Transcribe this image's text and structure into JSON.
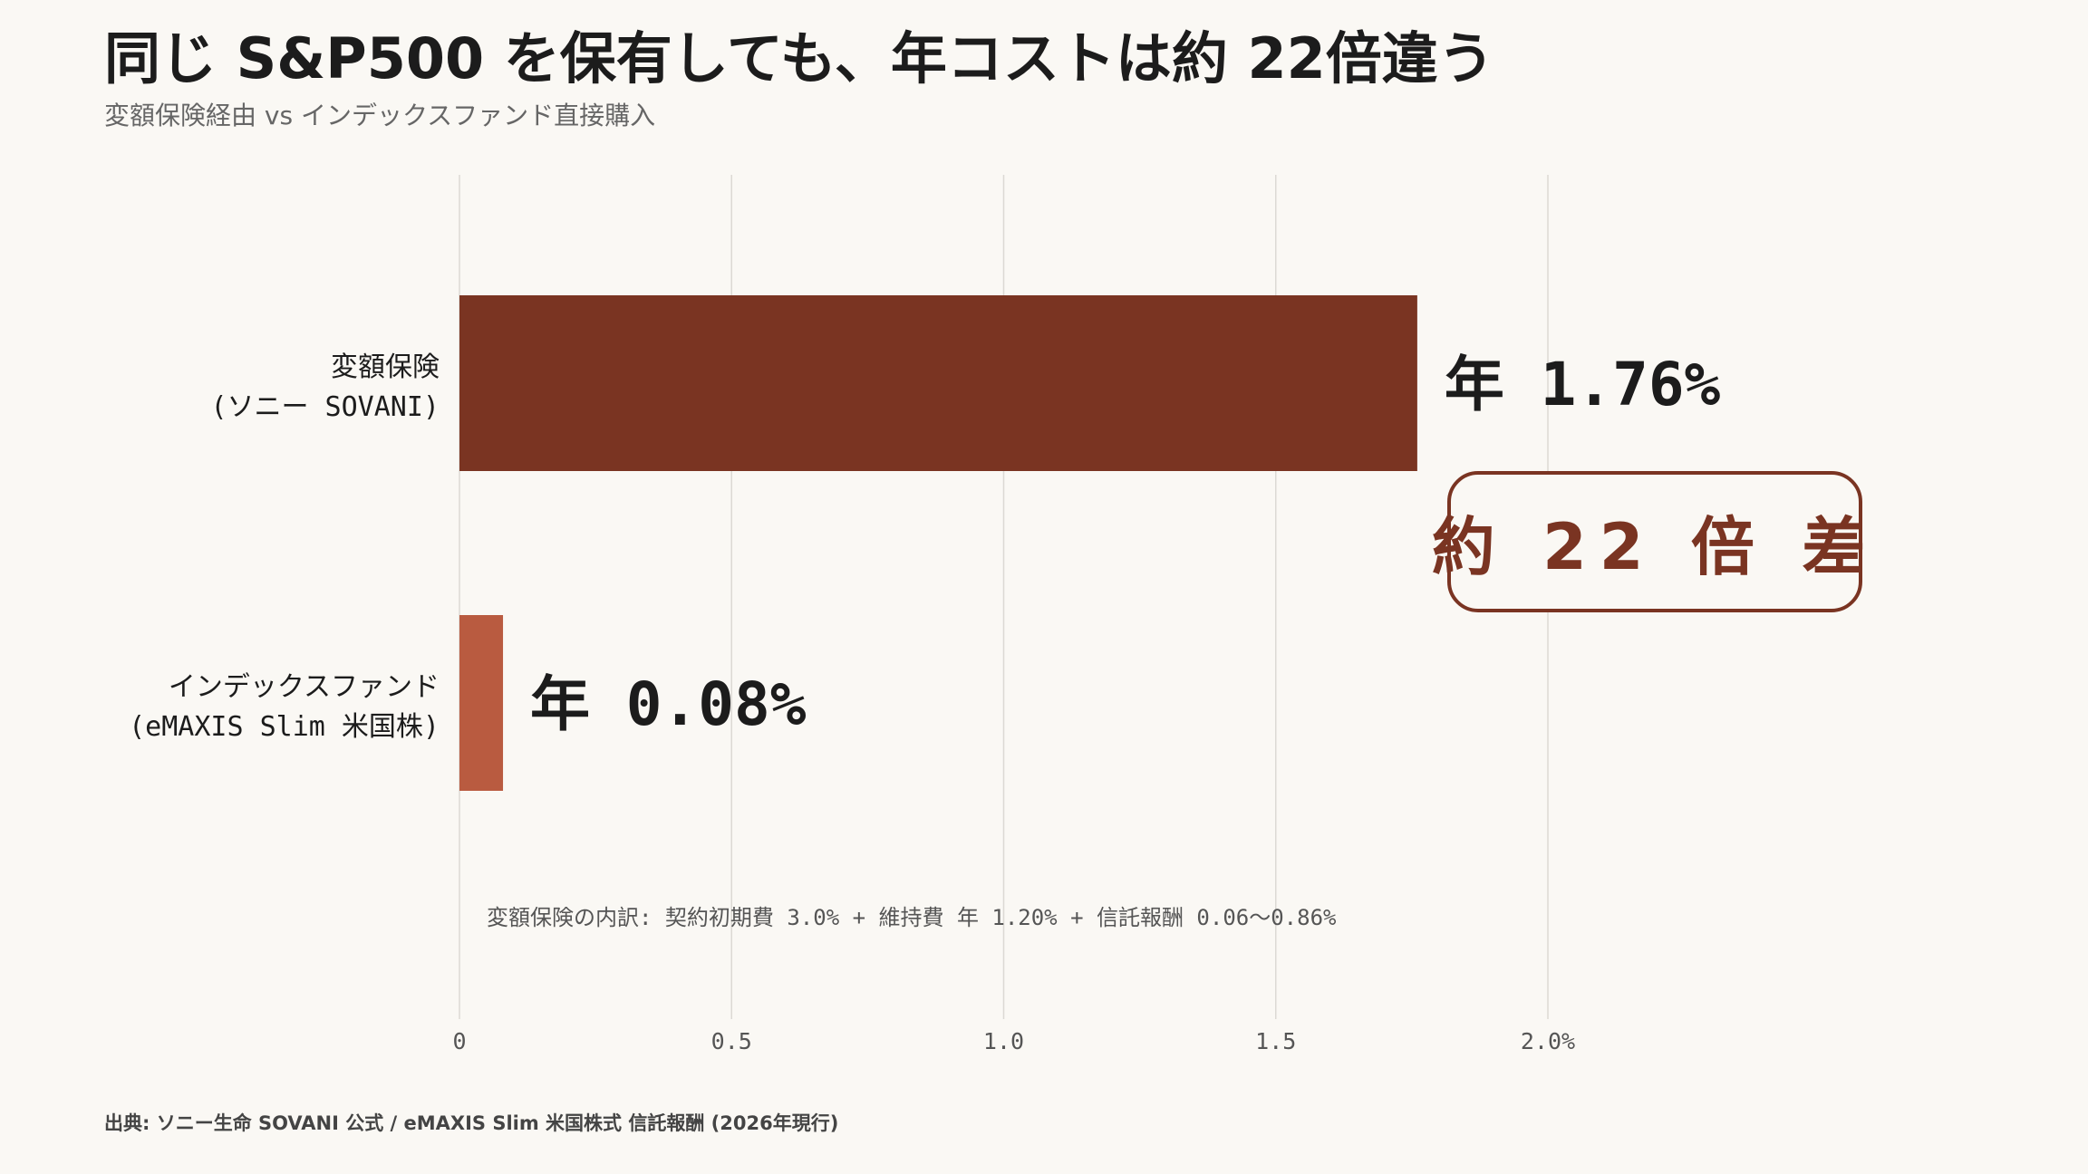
{
  "title": "同じ S&P500 を保有しても、年コストは約 22倍違う",
  "subtitle": "変額保険経由 vs インデックスファンド直接購入",
  "source": "出典: ソニー生命 SOVANI 公式 / eMAXIS Slim 米国株式 信託報酬 (2026年現行)",
  "callout": "約 22 倍 差",
  "note": "変額保険の内訳: 契約初期費 3.0% + 維持費 年 1.20% + 信託報酬 0.06〜0.86%",
  "colors": {
    "background": "#faf8f4",
    "bar_primary": "#7a3422",
    "bar_secondary": "#b95b40",
    "grid": "#dcd9d4",
    "axis_text": "#555555"
  },
  "chart_data": {
    "type": "bar",
    "orientation": "horizontal",
    "categories": [
      [
        "変額保険",
        "(ソニー SOVANI)"
      ],
      [
        "インデックスファンド",
        "(eMAXIS Slim 米国株)"
      ]
    ],
    "values": [
      1.76,
      0.08
    ],
    "value_labels": [
      "年 1.76%",
      "年 0.08%"
    ],
    "xlim": [
      0,
      2.0
    ],
    "xticks": [
      0,
      0.5,
      1.0,
      1.5,
      2.0
    ],
    "xtick_labels": [
      "0",
      "0.5",
      "1.0",
      "1.5",
      "2.0%"
    ],
    "grid": true,
    "xlabel": "",
    "ylabel": ""
  }
}
